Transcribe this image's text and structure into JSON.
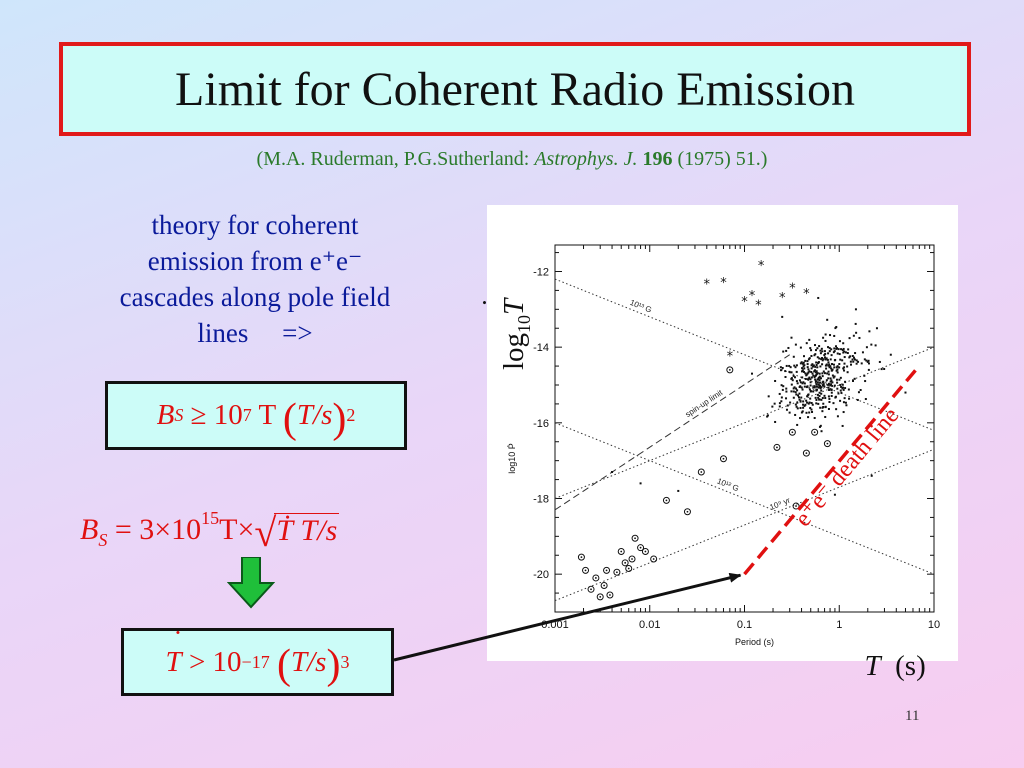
{
  "title": "Limit for Coherent Radio Emission",
  "reference": {
    "pre": "(M.A. Ruderman, P.G.Sutherland: ",
    "journal": "Astrophys. J.",
    "volume": "196",
    "post": " (1975) 51.)"
  },
  "theory_lines": [
    "theory for coherent",
    "emission from e⁺e⁻",
    "cascades along pole field",
    "lines     =>"
  ],
  "equations": {
    "eq1": {
      "lhs": "B",
      "sub": "S",
      "rel": " ≥ 10",
      "exp": "7",
      "rest": " T ",
      "paren_open": "(",
      "frac": "T/s",
      "paren_close": ")",
      "pow": "2"
    },
    "eq2": {
      "lhs": "B",
      "sub": "S",
      "rel": " = 3×10",
      "exp": "15",
      "rest": "T×",
      "root": "Ṫ T/s",
      "root_sign": "√"
    },
    "eq3": {
      "lhs": "T",
      "rel": " > 10",
      "exp": "−17",
      "paren_open": "(",
      "frac": "T/s",
      "paren_close": ")",
      "pow": "3"
    }
  },
  "plot_labels": {
    "y_overlay": "log10 Ṫ",
    "y_overlay_base": "log",
    "y_overlay_sub": "10",
    "y_overlay_var": "T",
    "x_overlay": "T  (s)",
    "x_overlay_var": "T",
    "x_overlay_unit": "(s)",
    "death_line_label": "e⁺e⁻ death line"
  },
  "slide_number": "11",
  "colors": {
    "accent_red": "#e01010",
    "title_border": "#e11a1a",
    "box_fill": "#ccfcf8",
    "text_blue": "#0a1a9a",
    "ref_green": "#2a7a2a",
    "arrow_green": "#1fbf3a"
  },
  "chart_data": {
    "type": "scatter",
    "x_scale": "log",
    "xlabel": "Period (s)",
    "ylabel": "log10 Ṗ",
    "xlim": [
      0.001,
      10
    ],
    "ylim": [
      -21,
      -11.3
    ],
    "x_tick_labels": [
      "0.001",
      "0.01",
      "0.1",
      "1",
      "10"
    ],
    "x_ticks": [
      0.001,
      0.01,
      0.1,
      1,
      10
    ],
    "y_tick_labels": [
      "-12",
      "-14",
      "-16",
      "-18",
      "-20"
    ],
    "y_ticks": [
      -12,
      -14,
      -16,
      -18,
      -20
    ],
    "lines": [
      {
        "label": "10¹³ G",
        "x": [
          0.001,
          10
        ],
        "y": [
          -12.2,
          -16.2
        ],
        "style": "dotted"
      },
      {
        "label": "10¹² G",
        "x": [
          0.001,
          10
        ],
        "y": [
          -16.0,
          -20.0
        ],
        "style": "dotted"
      },
      {
        "label": "10⁶ yr",
        "x": [
          0.001,
          10
        ],
        "y": [
          -18.0,
          -14.0
        ],
        "style": "dotted"
      },
      {
        "label": "10⁹ yr",
        "x": [
          0.001,
          10
        ],
        "y": [
          -20.7,
          -16.7
        ],
        "style": "dotted"
      },
      {
        "label": "spin-up limit",
        "x": [
          0.001,
          0.3
        ],
        "y": [
          -18.3,
          -14.2
        ],
        "style": "dashed"
      }
    ],
    "death_line": {
      "label": "e⁺e⁻ death line",
      "x": [
        0.1,
        10
      ],
      "y": [
        -20.0,
        -14.5
      ],
      "color": "#e01010",
      "style": "dashed"
    },
    "pointer_target": {
      "x": 0.1,
      "y": -20.0
    },
    "star_points": [
      [
        0.04,
        -12.35
      ],
      [
        0.06,
        -12.3
      ],
      [
        0.15,
        -11.85
      ],
      [
        0.1,
        -12.8
      ],
      [
        0.12,
        -12.65
      ],
      [
        0.14,
        -12.9
      ],
      [
        0.25,
        -12.7
      ],
      [
        0.32,
        -12.45
      ],
      [
        0.45,
        -12.6
      ],
      [
        0.07,
        -14.25
      ]
    ],
    "circled_points": [
      [
        0.0019,
        -19.55
      ],
      [
        0.0021,
        -19.9
      ],
      [
        0.0024,
        -20.4
      ],
      [
        0.0027,
        -20.1
      ],
      [
        0.003,
        -20.6
      ],
      [
        0.0033,
        -20.3
      ],
      [
        0.0035,
        -19.9
      ],
      [
        0.0038,
        -20.55
      ],
      [
        0.0045,
        -19.95
      ],
      [
        0.005,
        -19.4
      ],
      [
        0.0055,
        -19.7
      ],
      [
        0.006,
        -19.85
      ],
      [
        0.0065,
        -19.6
      ],
      [
        0.007,
        -19.05
      ],
      [
        0.008,
        -19.3
      ],
      [
        0.009,
        -19.4
      ],
      [
        0.011,
        -19.6
      ],
      [
        0.015,
        -18.05
      ],
      [
        0.025,
        -18.35
      ],
      [
        0.035,
        -17.3
      ],
      [
        0.06,
        -16.95
      ],
      [
        0.07,
        -14.6
      ],
      [
        0.22,
        -16.65
      ],
      [
        0.32,
        -16.25
      ],
      [
        0.35,
        -18.2
      ],
      [
        0.45,
        -16.8
      ],
      [
        0.75,
        -16.55
      ],
      [
        0.55,
        -16.25
      ]
    ],
    "note": "Approx. 450 unmarked pulsar points concentrated around P = 0.3–1.5 s, log10 Ṗ ≈ −13.5 to −16.5"
  }
}
